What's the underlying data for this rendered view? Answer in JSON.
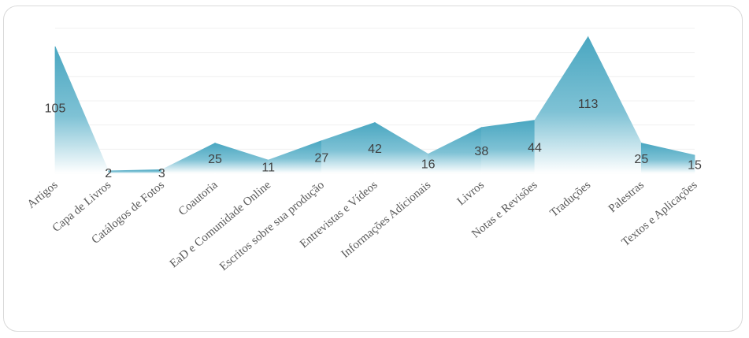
{
  "chart_data": {
    "type": "area",
    "title": "",
    "xlabel": "",
    "ylabel": "",
    "ylim": [
      0,
      120
    ],
    "grid": true,
    "legend": "none",
    "categories": [
      "Artigos",
      "Capa de Livros",
      "Catálogos de Fotos",
      "Coautoria",
      "EaD e Comunidade Online",
      "Escritos sobre sua produção",
      "Entrevistas e Vídeos",
      "Informações Adicionais",
      "Livros",
      "Notas e Revisões",
      "Traduções",
      "Palestras",
      "Textos e Aplicações"
    ],
    "series": [
      {
        "values": [
          105,
          2,
          3,
          25,
          11,
          27,
          42,
          16,
          38,
          44,
          113,
          25,
          15
        ]
      }
    ]
  },
  "colors": {
    "fill_top": "#4aa7c1",
    "fill_bottom": "#ffffff",
    "grid": "#f0f0f0",
    "label": "#404040",
    "category": "#595959",
    "border": "#d9d9d9"
  }
}
